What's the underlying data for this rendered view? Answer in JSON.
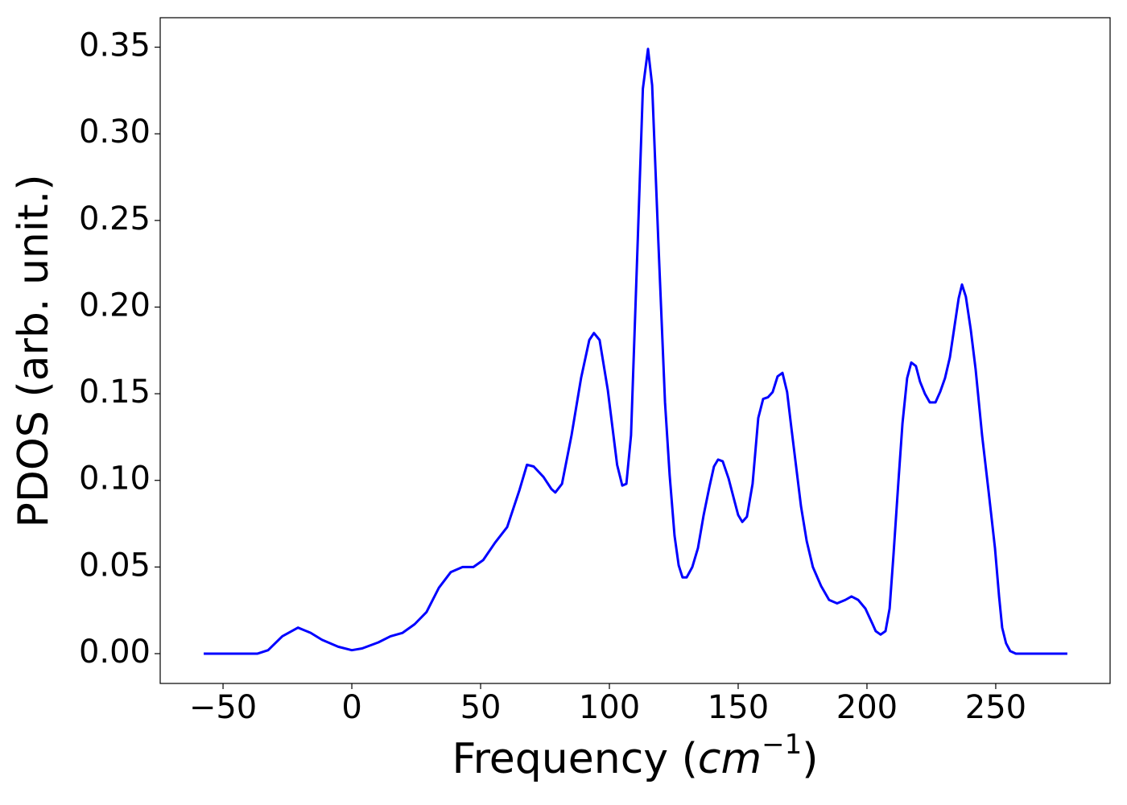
{
  "chart_data": {
    "type": "line",
    "y_label": "PDOS (arb. unit.)",
    "x_label": {
      "prefix": "Frequency (",
      "unit": "cm",
      "exponent": "−1",
      "suffix": ")"
    },
    "xlim": [
      -74.4,
      294.4
    ],
    "ylim": [
      -0.0172,
      0.367
    ],
    "xticks": [
      {
        "value": -50,
        "label": "−50"
      },
      0,
      50,
      100,
      150,
      200,
      250
    ],
    "yticks": [
      {
        "value": 0,
        "label": "0.00"
      },
      {
        "value": 0.05,
        "label": "0.05"
      },
      {
        "value": 0.1,
        "label": "0.10"
      },
      {
        "value": 0.15,
        "label": "0.15"
      },
      {
        "value": 0.2,
        "label": "0.20"
      },
      {
        "value": 0.25,
        "label": "0.25"
      },
      {
        "value": 0.3,
        "label": "0.30"
      },
      {
        "value": 0.35,
        "label": "0.35"
      }
    ],
    "grid": false,
    "series": [
      {
        "color": "#0000ff",
        "x": [
          -57.5,
          -36.6,
          -32.5,
          -27,
          -20.9,
          -16,
          -11.6,
          -5.3,
          0,
          4,
          10.3,
          15,
          19.7,
          24.4,
          29,
          33.8,
          38.4,
          43,
          47.2,
          51,
          55.6,
          60.3,
          65,
          68,
          70.6,
          74.4,
          77.5,
          79,
          81.6,
          85.3,
          89,
          92.2,
          94,
          96.2,
          99.4,
          103,
          105,
          106.6,
          108.4,
          111,
          113,
          115,
          116.6,
          119,
          121.6,
          123.4,
          125.3,
          126.9,
          128.4,
          130,
          132.2,
          134.4,
          136.6,
          138.8,
          140.6,
          142.2,
          144,
          146.3,
          148.4,
          150,
          151.6,
          153.4,
          155.6,
          157.8,
          159.7,
          161.6,
          163.4,
          165.3,
          167.2,
          169,
          170.6,
          172.5,
          174.4,
          176.6,
          179,
          182.2,
          185.3,
          188.4,
          191.6,
          194,
          196.6,
          199.4,
          202.2,
          203.4,
          205.3,
          207.2,
          208.8,
          210.3,
          212.2,
          213.8,
          215.6,
          217.2,
          219,
          220.6,
          222.5,
          224.4,
          226.6,
          228.4,
          230.3,
          232.2,
          234,
          235.6,
          236.9,
          238.4,
          240.3,
          242.2,
          244.7,
          247.2,
          249.7,
          251.3,
          252.5,
          254,
          255.6,
          257.8,
          277.8
        ],
        "values": [
          0,
          0,
          0.002,
          0.01,
          0.015,
          0.012,
          0.008,
          0.004,
          0.002,
          0.003,
          0.0065,
          0.01,
          0.012,
          0.017,
          0.024,
          0.038,
          0.047,
          0.05,
          0.05,
          0.054,
          0.064,
          0.073,
          0.094,
          0.109,
          0.108,
          0.102,
          0.095,
          0.093,
          0.098,
          0.126,
          0.159,
          0.181,
          0.185,
          0.181,
          0.152,
          0.109,
          0.097,
          0.098,
          0.126,
          0.238,
          0.326,
          0.349,
          0.328,
          0.238,
          0.145,
          0.103,
          0.068,
          0.051,
          0.044,
          0.044,
          0.05,
          0.061,
          0.08,
          0.096,
          0.108,
          0.112,
          0.111,
          0.101,
          0.089,
          0.08,
          0.076,
          0.079,
          0.098,
          0.136,
          0.147,
          0.148,
          0.151,
          0.16,
          0.162,
          0.151,
          0.131,
          0.108,
          0.085,
          0.065,
          0.05,
          0.039,
          0.031,
          0.029,
          0.031,
          0.033,
          0.031,
          0.026,
          0.017,
          0.013,
          0.011,
          0.013,
          0.026,
          0.057,
          0.099,
          0.133,
          0.159,
          0.168,
          0.166,
          0.157,
          0.15,
          0.145,
          0.145,
          0.151,
          0.159,
          0.171,
          0.189,
          0.205,
          0.213,
          0.206,
          0.187,
          0.164,
          0.126,
          0.094,
          0.061,
          0.033,
          0.015,
          0.006,
          0.0015,
          0,
          0
        ]
      }
    ]
  }
}
